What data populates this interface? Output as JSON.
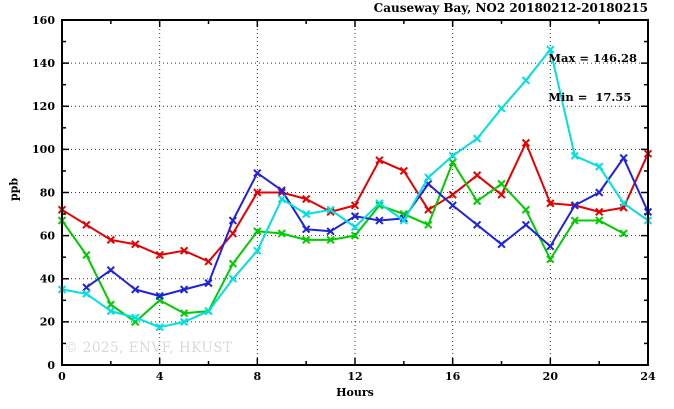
{
  "title": "Causeway Bay, NO2 20180212-20180215",
  "annotations": {
    "max": "Max = 146.28",
    "min": "Min =  17.55"
  },
  "watermark": "© 2025, ENVF, HKUST",
  "chart_data": {
    "type": "line",
    "title": "Causeway Bay, NO2 20180212-20180215",
    "xlabel": "Hours",
    "ylabel": "ppb",
    "xlim": [
      0,
      24
    ],
    "ylim": [
      0,
      160
    ],
    "x_major_ticks": [
      0,
      4,
      8,
      12,
      16,
      20,
      24
    ],
    "x_minor_tick_step": 2,
    "y_major_ticks": [
      0,
      20,
      40,
      60,
      80,
      100,
      120,
      140,
      160
    ],
    "y_minor_tick_step": 10,
    "grid": {
      "style": "dotted",
      "x_at": [
        4,
        8,
        12,
        16,
        20
      ],
      "y_at": [
        20,
        40,
        60,
        80,
        100,
        120,
        140
      ]
    },
    "legend_position": "none",
    "stats": {
      "max": 146.28,
      "min": 17.55
    },
    "x": [
      0,
      1,
      2,
      3,
      4,
      5,
      6,
      7,
      8,
      9,
      10,
      11,
      12,
      13,
      14,
      15,
      16,
      17,
      18,
      19,
      20,
      21,
      22,
      23,
      24
    ],
    "series": [
      {
        "name": "red-line",
        "color": "#e60000",
        "values": [
          72,
          65,
          58,
          56,
          51,
          53,
          48,
          61,
          80,
          80,
          77,
          71,
          74,
          95,
          90,
          72,
          79,
          88,
          79,
          103,
          75,
          74,
          71,
          73,
          98
        ]
      },
      {
        "name": "green-line",
        "color": "#00cc00",
        "values": [
          67,
          51,
          28,
          20,
          30,
          24,
          25,
          47,
          62,
          61,
          58,
          58,
          60,
          74,
          70,
          65,
          94,
          76,
          84,
          72,
          49,
          67,
          67,
          61,
          null
        ]
      },
      {
        "name": "blue-line",
        "color": "#2222dd",
        "values": [
          null,
          36,
          44,
          35,
          32,
          35,
          38,
          67,
          89,
          81,
          63,
          62,
          69,
          67,
          68,
          84,
          74,
          65,
          56,
          65,
          55,
          74,
          80,
          96,
          71
        ]
      },
      {
        "name": "cyan-line",
        "color": "#00e0e0",
        "values": [
          35,
          33,
          25,
          22,
          17.55,
          20,
          25,
          40,
          53,
          77,
          70,
          72,
          64,
          75,
          67,
          87,
          97,
          105,
          119,
          132,
          146.28,
          97,
          92,
          75,
          67
        ]
      }
    ]
  }
}
